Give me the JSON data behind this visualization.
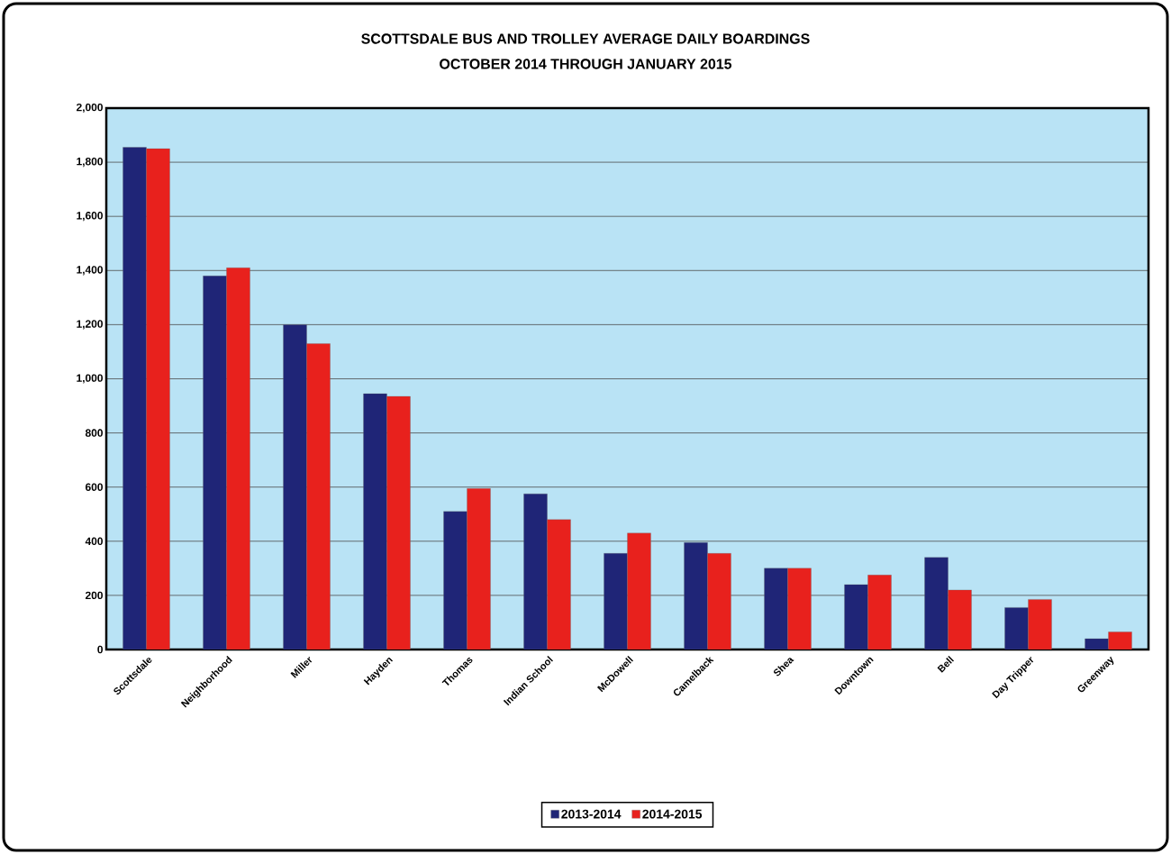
{
  "chart_data": {
    "type": "bar",
    "title": "SCOTTSDALE BUS AND TROLLEY AVERAGE DAILY BOARDINGS",
    "subtitle": "OCTOBER 2014 THROUGH JANUARY 2015",
    "categories": [
      "Scottsdale",
      "Neighborhood",
      "Miller",
      "Hayden",
      "Thomas",
      "Indian School",
      "McDowell",
      "Camelback",
      "Shea",
      "Downtown",
      "Bell",
      "Day Tripper",
      "Greenway"
    ],
    "series": [
      {
        "name": "2013-2014",
        "color": "#1f2577",
        "values": [
          1855,
          1380,
          1200,
          945,
          510,
          575,
          355,
          395,
          300,
          240,
          340,
          155,
          40
        ]
      },
      {
        "name": "2014-2015",
        "color": "#e8211d",
        "values": [
          1850,
          1410,
          1130,
          935,
          595,
          480,
          430,
          355,
          300,
          275,
          220,
          185,
          65
        ]
      }
    ],
    "ylim": [
      0,
      2000
    ],
    "yticks": [
      0,
      200,
      400,
      600,
      800,
      {
        "value": 1000,
        "label": "1,000"
      },
      {
        "value": 1200,
        "label": "1,200"
      },
      {
        "value": 1400,
        "label": "1,400"
      },
      {
        "value": 1600,
        "label": "1,600"
      },
      {
        "value": 1800,
        "label": "1,800"
      },
      {
        "value": 2000,
        "label": "2,000"
      }
    ],
    "grid": "y",
    "legend": "bottom"
  }
}
